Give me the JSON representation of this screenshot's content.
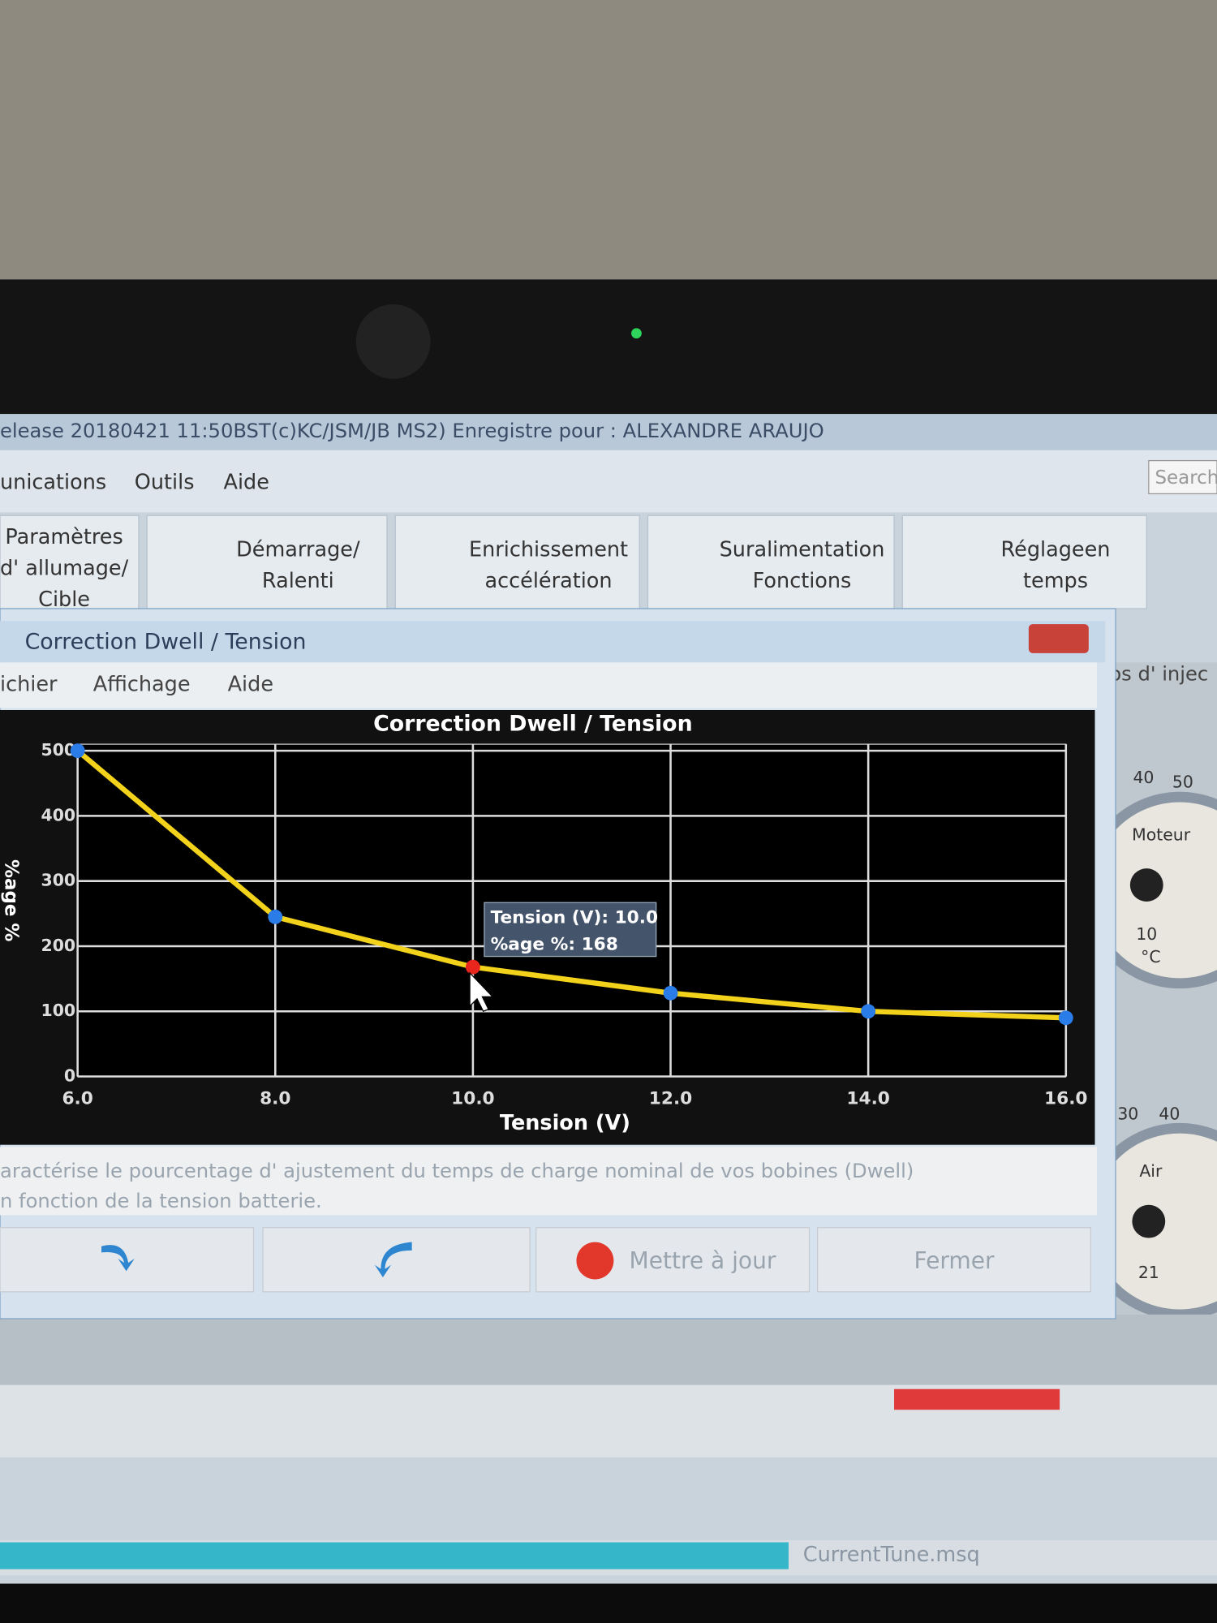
{
  "window": {
    "title_bar": "elease 20180421 11:50BST(c)KC/JSM/JB   MS2) Enregistre pour : ALEXANDRE ARAUJO",
    "menu": [
      "unications",
      "Outils",
      "Aide"
    ],
    "search": "Search",
    "toolbar": [
      [
        "Paramètres",
        "d' allumage/",
        "Cible"
      ],
      [
        "Démarrage/",
        "Ralenti"
      ],
      [
        "Enrichissement",
        "accélération"
      ],
      [
        "Suralimentation",
        "Fonctions"
      ],
      [
        "Réglageen",
        "temps"
      ]
    ],
    "behind_tab": "os d' injec",
    "gauges": [
      "40",
      "50",
      "Moteur",
      "10",
      "°C",
      "30",
      "40",
      "Air",
      "21"
    ],
    "status_file": "CurrentTune.msq"
  },
  "dialog": {
    "title": "Correction Dwell / Tension",
    "menu": [
      "ichier",
      "Affichage",
      "Aide"
    ],
    "description": [
      "aractérise le pourcentage d' ajustement du temps de charge nominal de vos bobines (Dwell)",
      "n fonction de la tension batterie."
    ],
    "buttons": [
      "Mettre à jour",
      "Fermer"
    ]
  },
  "chart_data": {
    "type": "line",
    "title": "Correction Dwell / Tension",
    "x_label": "Tension (V)",
    "y_label": "%age %",
    "x": [
      6,
      8,
      10,
      12,
      14,
      16
    ],
    "values": [
      500,
      245,
      168,
      128,
      100,
      90
    ],
    "color": "#f2d21b",
    "point_color": "#2a7de8",
    "selected_point": 2,
    "selected_color": "#e8261e",
    "tooltip": [
      "Tension (V): 10.0",
      "%age %: 168"
    ],
    "xlim": [
      6,
      16
    ],
    "ylim": [
      0,
      510
    ],
    "xticks": [
      {
        "value": 6,
        "label": "6.0"
      },
      {
        "value": 8,
        "label": "8.0"
      },
      {
        "value": 10,
        "label": "10.0"
      },
      {
        "value": 12,
        "label": "12.0"
      },
      {
        "value": 14,
        "label": "14.0"
      },
      {
        "value": 16,
        "label": "16.0"
      }
    ],
    "yticks": [
      0,
      100,
      200,
      300,
      400,
      500
    ],
    "grid": true
  }
}
